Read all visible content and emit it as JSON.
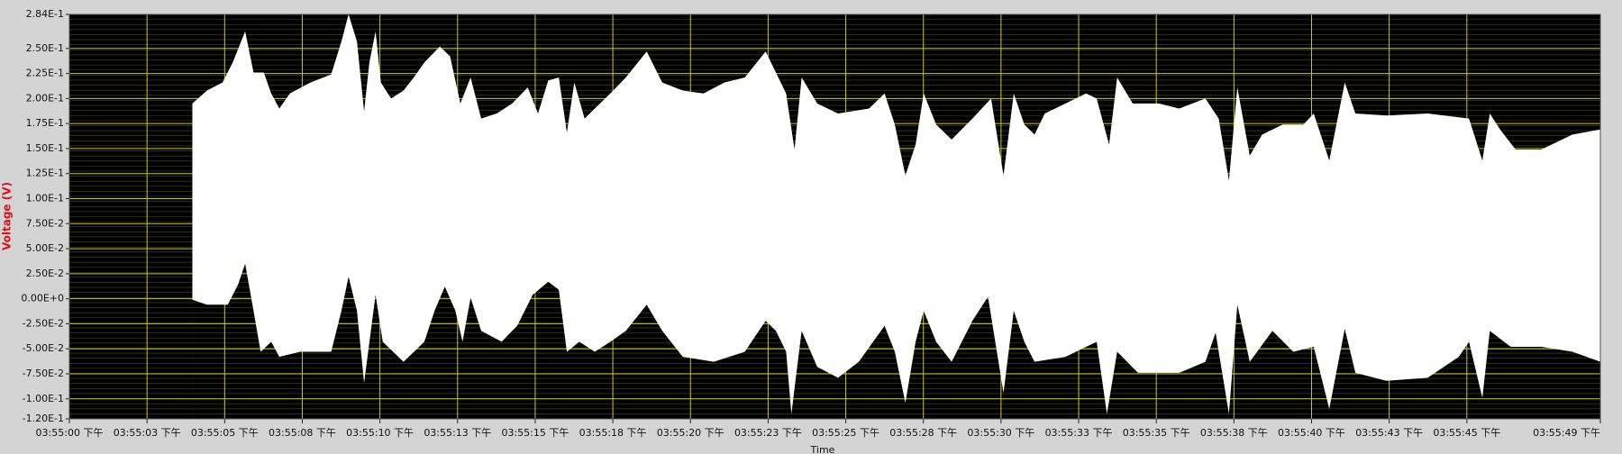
{
  "chart_data": {
    "type": "band",
    "y_label": "Voltage (V)",
    "x_label": "Time",
    "plot_background": "#000000",
    "fill": "#ffffff",
    "grid": true,
    "grid_color": "#c8c81e",
    "xlim": [
      0,
      49.3
    ],
    "xticks": [
      {
        "value": 0,
        "label": "03:55:00 下午"
      },
      {
        "value": 2.5,
        "label": "03:55:03 下午"
      },
      {
        "value": 5,
        "label": "03:55:05 下午"
      },
      {
        "value": 7.5,
        "label": "03:55:08 下午"
      },
      {
        "value": 10,
        "label": "03:55:10 下午"
      },
      {
        "value": 12.5,
        "label": "03:55:13 下午"
      },
      {
        "value": 15,
        "label": "03:55:15 下午"
      },
      {
        "value": 17.5,
        "label": "03:55:18 下午"
      },
      {
        "value": 20,
        "label": "03:55:20 下午"
      },
      {
        "value": 22.5,
        "label": "03:55:23 下午"
      },
      {
        "value": 25,
        "label": "03:55:25 下午"
      },
      {
        "value": 27.5,
        "label": "03:55:28 下午"
      },
      {
        "value": 30,
        "label": "03:55:30 下午"
      },
      {
        "value": 32.5,
        "label": "03:55:33 下午"
      },
      {
        "value": 35,
        "label": "03:55:35 下午"
      },
      {
        "value": 37.5,
        "label": "03:55:38 下午"
      },
      {
        "value": 40,
        "label": "03:55:40 下午"
      },
      {
        "value": 42.5,
        "label": "03:55:43 下午"
      },
      {
        "value": 45,
        "label": "03:55:45 下午"
      },
      {
        "value": 49.3,
        "label": "03:55:49 下午"
      }
    ],
    "ylim": [
      -0.12,
      0.284
    ],
    "yticks": [
      {
        "value": 0.284,
        "label": "2.84E-1"
      },
      {
        "value": 0.25,
        "label": "2.50E-1"
      },
      {
        "value": 0.225,
        "label": "2.25E-1"
      },
      {
        "value": 0.2,
        "label": "2.00E-1"
      },
      {
        "value": 0.175,
        "label": "1.75E-1"
      },
      {
        "value": 0.15,
        "label": "1.50E-1"
      },
      {
        "value": 0.125,
        "label": "1.25E-1"
      },
      {
        "value": 0.1,
        "label": "1.00E-1"
      },
      {
        "value": 0.075,
        "label": "7.50E-2"
      },
      {
        "value": 0.05,
        "label": "5.00E-2"
      },
      {
        "value": 0.025,
        "label": "2.50E-2"
      },
      {
        "value": 0,
        "label": "0.00E+0"
      },
      {
        "value": -0.025,
        "label": "-2.50E-2"
      },
      {
        "value": -0.05,
        "label": "-5.00E-2"
      },
      {
        "value": -0.075,
        "label": "-7.50E-2"
      },
      {
        "value": -0.1,
        "label": "-1.00E-1"
      },
      {
        "value": -0.12,
        "label": "-1.20E-1"
      }
    ],
    "series": [
      {
        "x": [
          3.96,
          4.43,
          4.93,
          5.26,
          5.66,
          5.93,
          6.26,
          6.5,
          6.76,
          7.1,
          7.76,
          8.43,
          8.76,
          8.99,
          9.26,
          9.49,
          9.66,
          9.86,
          10.03,
          10.36,
          10.76,
          11.09,
          11.43,
          11.93,
          12.26,
          12.59,
          12.92,
          13.26,
          13.76,
          14.26,
          14.76,
          15.09,
          15.42,
          15.76,
          16.02,
          16.26,
          16.59,
          16.92,
          17.42,
          17.92,
          18.59,
          19.09,
          19.75,
          20.42,
          21.09,
          21.75,
          22.42,
          22.75,
          23.08,
          23.35,
          23.58,
          24.08,
          24.75,
          25.75,
          26.25,
          26.58,
          26.92,
          27.25,
          27.51,
          27.91,
          28.41,
          29.08,
          29.68,
          30.08,
          30.41,
          30.75,
          31.08,
          31.41,
          32.08,
          32.74,
          33.08,
          33.48,
          33.74,
          34.24,
          35.08,
          35.74,
          36.58,
          37.01,
          37.34,
          37.61,
          38.01,
          38.41,
          39.07,
          39.74,
          40.07,
          40.57,
          41.07,
          41.41,
          42.41,
          43.74,
          45.07,
          45.5,
          45.74,
          46.07,
          46.57,
          47.4,
          48.4,
          49.3
        ],
        "values": [
          0.195,
          0.208,
          0.216,
          0.236,
          0.267,
          0.226,
          0.226,
          0.205,
          0.19,
          0.205,
          0.216,
          0.224,
          0.257,
          0.284,
          0.257,
          0.187,
          0.236,
          0.267,
          0.216,
          0.2,
          0.208,
          0.221,
          0.236,
          0.252,
          0.242,
          0.195,
          0.221,
          0.18,
          0.185,
          0.195,
          0.211,
          0.185,
          0.218,
          0.221,
          0.166,
          0.216,
          0.18,
          0.19,
          0.205,
          0.221,
          0.247,
          0.216,
          0.208,
          0.205,
          0.216,
          0.221,
          0.247,
          0.226,
          0.205,
          0.149,
          0.221,
          0.195,
          0.185,
          0.19,
          0.205,
          0.174,
          0.123,
          0.154,
          0.205,
          0.174,
          0.159,
          0.18,
          0.2,
          0.123,
          0.205,
          0.174,
          0.164,
          0.185,
          0.195,
          0.205,
          0.2,
          0.154,
          0.221,
          0.195,
          0.195,
          0.19,
          0.2,
          0.18,
          0.118,
          0.211,
          0.143,
          0.164,
          0.174,
          0.174,
          0.185,
          0.138,
          0.216,
          0.185,
          0.183,
          0.185,
          0.18,
          0.138,
          0.185,
          0.169,
          0.149,
          0.149,
          0.164,
          0.169
        ]
      },
      {
        "x": [
          3.96,
          4.43,
          5.1,
          5.43,
          5.66,
          5.93,
          6.16,
          6.5,
          6.76,
          7.43,
          8.43,
          8.76,
          8.99,
          9.26,
          9.49,
          9.86,
          10.09,
          10.76,
          11.43,
          11.76,
          12.09,
          12.43,
          12.66,
          12.92,
          13.26,
          13.92,
          14.42,
          14.92,
          15.42,
          15.76,
          16.02,
          16.42,
          16.92,
          17.42,
          17.92,
          18.59,
          19.09,
          19.75,
          20.75,
          21.75,
          22.42,
          22.75,
          23.08,
          23.25,
          23.58,
          24.08,
          24.75,
          25.42,
          26.25,
          26.58,
          26.92,
          27.25,
          27.51,
          27.91,
          28.41,
          29.08,
          29.58,
          30.08,
          30.41,
          30.75,
          31.08,
          32.08,
          32.74,
          33.08,
          33.41,
          33.74,
          34.41,
          35.74,
          36.58,
          36.91,
          37.34,
          37.61,
          38.01,
          38.74,
          39.41,
          40.07,
          40.57,
          41.07,
          41.41,
          42.41,
          43.74,
          44.74,
          45.07,
          45.5,
          45.74,
          46.41,
          47.4,
          48.4,
          49.3
        ],
        "values": [
          -0.001,
          -0.006,
          -0.006,
          0.014,
          0.035,
          -0.012,
          -0.053,
          -0.043,
          -0.058,
          -0.053,
          -0.053,
          -0.012,
          0.022,
          -0.012,
          -0.084,
          0.004,
          -0.043,
          -0.063,
          -0.043,
          -0.012,
          0.012,
          -0.012,
          -0.043,
          0.001,
          -0.032,
          -0.043,
          -0.027,
          0.004,
          0.017,
          0.009,
          -0.053,
          -0.043,
          -0.053,
          -0.043,
          -0.032,
          -0.006,
          -0.032,
          -0.058,
          -0.063,
          -0.053,
          -0.022,
          -0.032,
          -0.053,
          -0.115,
          -0.032,
          -0.068,
          -0.079,
          -0.063,
          -0.027,
          -0.053,
          -0.104,
          -0.043,
          -0.012,
          -0.043,
          -0.063,
          -0.022,
          0.002,
          -0.094,
          -0.012,
          -0.043,
          -0.063,
          -0.058,
          -0.048,
          -0.043,
          -0.115,
          -0.053,
          -0.074,
          -0.074,
          -0.063,
          -0.034,
          -0.115,
          -0.006,
          -0.063,
          -0.032,
          -0.053,
          -0.048,
          -0.11,
          -0.03,
          -0.074,
          -0.082,
          -0.079,
          -0.058,
          -0.043,
          -0.099,
          -0.032,
          -0.048,
          -0.048,
          -0.053,
          -0.063
        ]
      }
    ]
  }
}
